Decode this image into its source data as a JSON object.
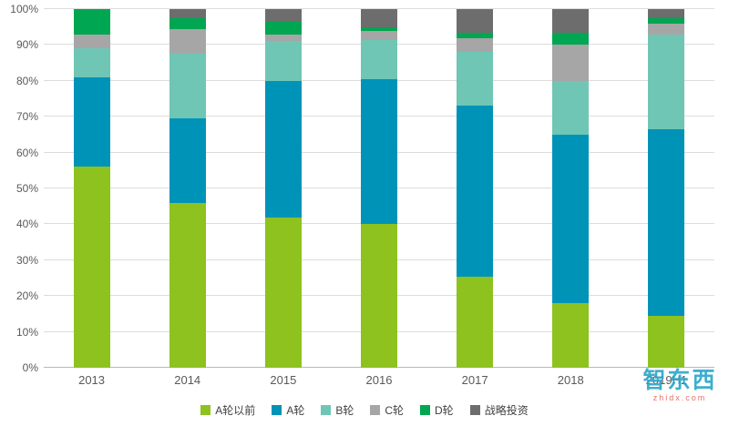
{
  "chart_data": {
    "type": "bar",
    "subtype": "stacked-100-percent",
    "title": "",
    "xlabel": "",
    "ylabel": "",
    "ylim": [
      0,
      100
    ],
    "grid": true,
    "legend_position": "bottom",
    "categories": [
      "2013",
      "2014",
      "2015",
      "2016",
      "2017",
      "2018",
      "2019H1"
    ],
    "y_ticks": [
      "0%",
      "10%",
      "20%",
      "30%",
      "40%",
      "50%",
      "60%",
      "70%",
      "80%",
      "90%",
      "100%"
    ],
    "series": [
      {
        "name": "A轮以前",
        "color": "#8dc21f",
        "values": [
          56,
          46,
          42,
          40,
          25.5,
          18,
          14.5
        ]
      },
      {
        "name": "A轮",
        "color": "#0093b8",
        "values": [
          25,
          23.5,
          38,
          40.5,
          47.5,
          47,
          52
        ]
      },
      {
        "name": "B轮",
        "color": "#6fc6b4",
        "values": [
          8,
          18,
          11,
          11,
          15,
          15,
          26.5
        ]
      },
      {
        "name": "C轮",
        "color": "#a6a6a6",
        "values": [
          4,
          7,
          2,
          2.5,
          4,
          10,
          3
        ]
      },
      {
        "name": "D轮",
        "color": "#00a651",
        "values": [
          7,
          3,
          3.5,
          1,
          1.5,
          3.5,
          1.5
        ]
      },
      {
        "name": "战略投资",
        "color": "#6d6d6d",
        "values": [
          0,
          2.5,
          3.5,
          5,
          6.5,
          6.5,
          2.5
        ]
      }
    ]
  },
  "watermark": {
    "brand": "智东西",
    "domain": "zhidx.com"
  }
}
